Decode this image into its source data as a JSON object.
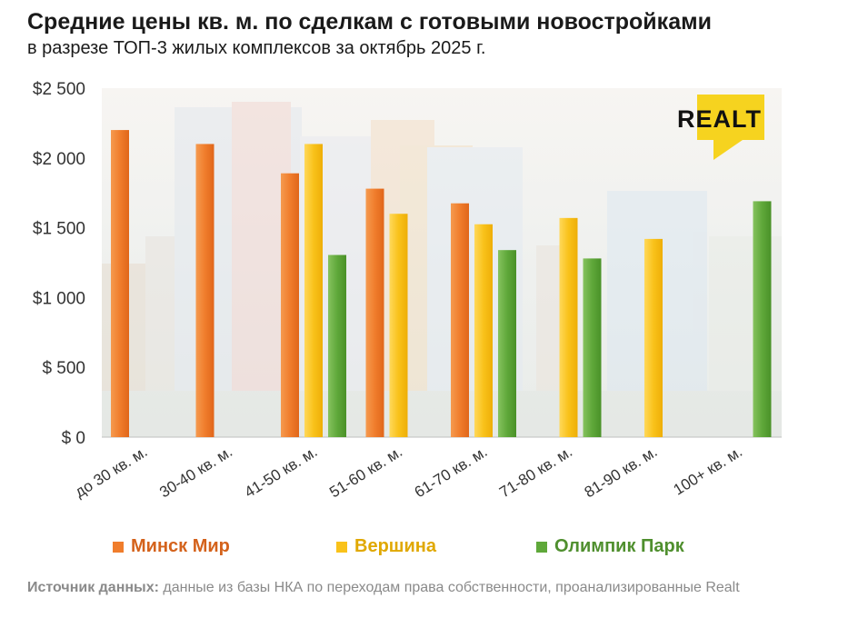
{
  "title": "Средние цены кв. м. по сделкам с готовыми новостройками",
  "subtitle": "в разрезе ТОП-3 жилых комплексов за октябрь 2025 г.",
  "logo_text": "REALT",
  "source": {
    "label": "Источник данных:",
    "text": " данные из базы НКА по переходам права собственности, проанализированные Realt"
  },
  "colors": {
    "minsk_mir": "#f07d2c",
    "vershina": "#f9c21a",
    "olimpik_park": "#5fa83a",
    "legend_minsk_mir": "#d4621b",
    "legend_vershina": "#e0a800",
    "legend_olimpik_park": "#4f8f2e",
    "logo_yellow": "#f6d31f"
  },
  "chart_data": {
    "type": "bar",
    "title": "Средние цены кв. м. по сделкам с готовыми новостройками",
    "subtitle": "в разрезе ТОП-3 жилых комплексов за октябрь 2025 г.",
    "categories": [
      "до 30 кв. м.",
      "30-40 кв. м.",
      "41-50 кв. м.",
      "51-60 кв. м.",
      "61-70 кв. м.",
      "71-80 кв. м.",
      "81-90 кв. м.",
      "100+ кв. м."
    ],
    "series": [
      {
        "name": "Минск Мир",
        "values": [
          2200,
          2100,
          1890,
          1780,
          1675,
          null,
          null,
          null
        ]
      },
      {
        "name": "Вершина",
        "values": [
          null,
          null,
          2100,
          1600,
          1525,
          1570,
          1420,
          null
        ]
      },
      {
        "name": "Олимпик Парк",
        "values": [
          null,
          null,
          1305,
          null,
          1340,
          1280,
          null,
          1690
        ]
      }
    ],
    "yticks": [
      "$ 0",
      "$ 500",
      "$1 000",
      "$1 500",
      "$2 000",
      "$2 500"
    ],
    "ylim": [
      0,
      2500
    ],
    "xlabel": "",
    "ylabel": "",
    "grid": false,
    "legend": "bottom"
  }
}
